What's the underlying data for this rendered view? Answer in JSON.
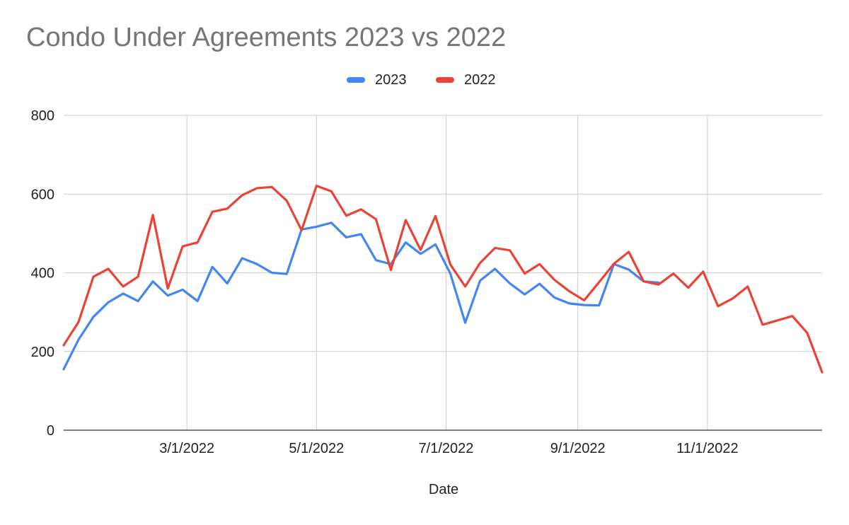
{
  "chart_data": {
    "type": "line",
    "title": "Condo Under Agreements 2023 vs 2022",
    "xlabel": "Date",
    "ylabel": "",
    "ylim": [
      0,
      800
    ],
    "yticks": [
      0,
      200,
      400,
      600,
      800
    ],
    "xlim": [
      "2022-01-02",
      "2022-12-25"
    ],
    "xticks": [
      {
        "date": "2022-03-01",
        "label": "3/1/2022"
      },
      {
        "date": "2022-05-01",
        "label": "5/1/2022"
      },
      {
        "date": "2022-07-01",
        "label": "7/1/2022"
      },
      {
        "date": "2022-09-01",
        "label": "9/1/2022"
      },
      {
        "date": "2022-11-01",
        "label": "11/1/2022"
      }
    ],
    "grid": true,
    "legend_position": "top",
    "x": [
      "2022-01-02",
      "2022-01-09",
      "2022-01-16",
      "2022-01-23",
      "2022-01-30",
      "2022-02-06",
      "2022-02-13",
      "2022-02-20",
      "2022-02-27",
      "2022-03-06",
      "2022-03-13",
      "2022-03-20",
      "2022-03-27",
      "2022-04-03",
      "2022-04-10",
      "2022-04-17",
      "2022-04-24",
      "2022-05-01",
      "2022-05-08",
      "2022-05-15",
      "2022-05-22",
      "2022-05-29",
      "2022-06-05",
      "2022-06-12",
      "2022-06-19",
      "2022-06-26",
      "2022-07-03",
      "2022-07-10",
      "2022-07-17",
      "2022-07-24",
      "2022-07-31",
      "2022-08-07",
      "2022-08-14",
      "2022-08-21",
      "2022-08-28",
      "2022-09-04",
      "2022-09-11",
      "2022-09-18",
      "2022-09-25",
      "2022-10-02",
      "2022-10-09",
      "2022-10-16",
      "2022-10-23",
      "2022-10-30",
      "2022-11-06",
      "2022-11-13",
      "2022-11-20",
      "2022-11-27",
      "2022-12-04",
      "2022-12-11",
      "2022-12-18",
      "2022-12-25"
    ],
    "series": [
      {
        "name": "2023",
        "color": "#4285f4",
        "values": [
          155,
          230,
          288,
          325,
          347,
          328,
          378,
          342,
          357,
          328,
          415,
          373,
          437,
          422,
          400,
          397,
          510,
          517,
          527,
          490,
          498,
          432,
          422,
          477,
          448,
          472,
          398,
          273,
          380,
          410,
          373,
          345,
          372,
          337,
          322,
          318,
          317,
          422,
          408,
          378,
          375,
          null,
          null,
          null,
          null,
          null,
          null,
          null,
          null,
          null,
          null,
          null
        ]
      },
      {
        "name": "2022",
        "color": "#ea4335",
        "values": [
          216,
          275,
          390,
          410,
          365,
          390,
          547,
          360,
          467,
          477,
          555,
          563,
          597,
          615,
          618,
          583,
          508,
          621,
          607,
          545,
          561,
          536,
          407,
          534,
          458,
          544,
          421,
          365,
          425,
          463,
          457,
          398,
          422,
          382,
          353,
          330,
          376,
          423,
          453,
          378,
          370,
          398,
          362,
          403,
          315,
          335,
          365,
          268,
          279,
          290,
          247,
          147
        ]
      }
    ]
  }
}
